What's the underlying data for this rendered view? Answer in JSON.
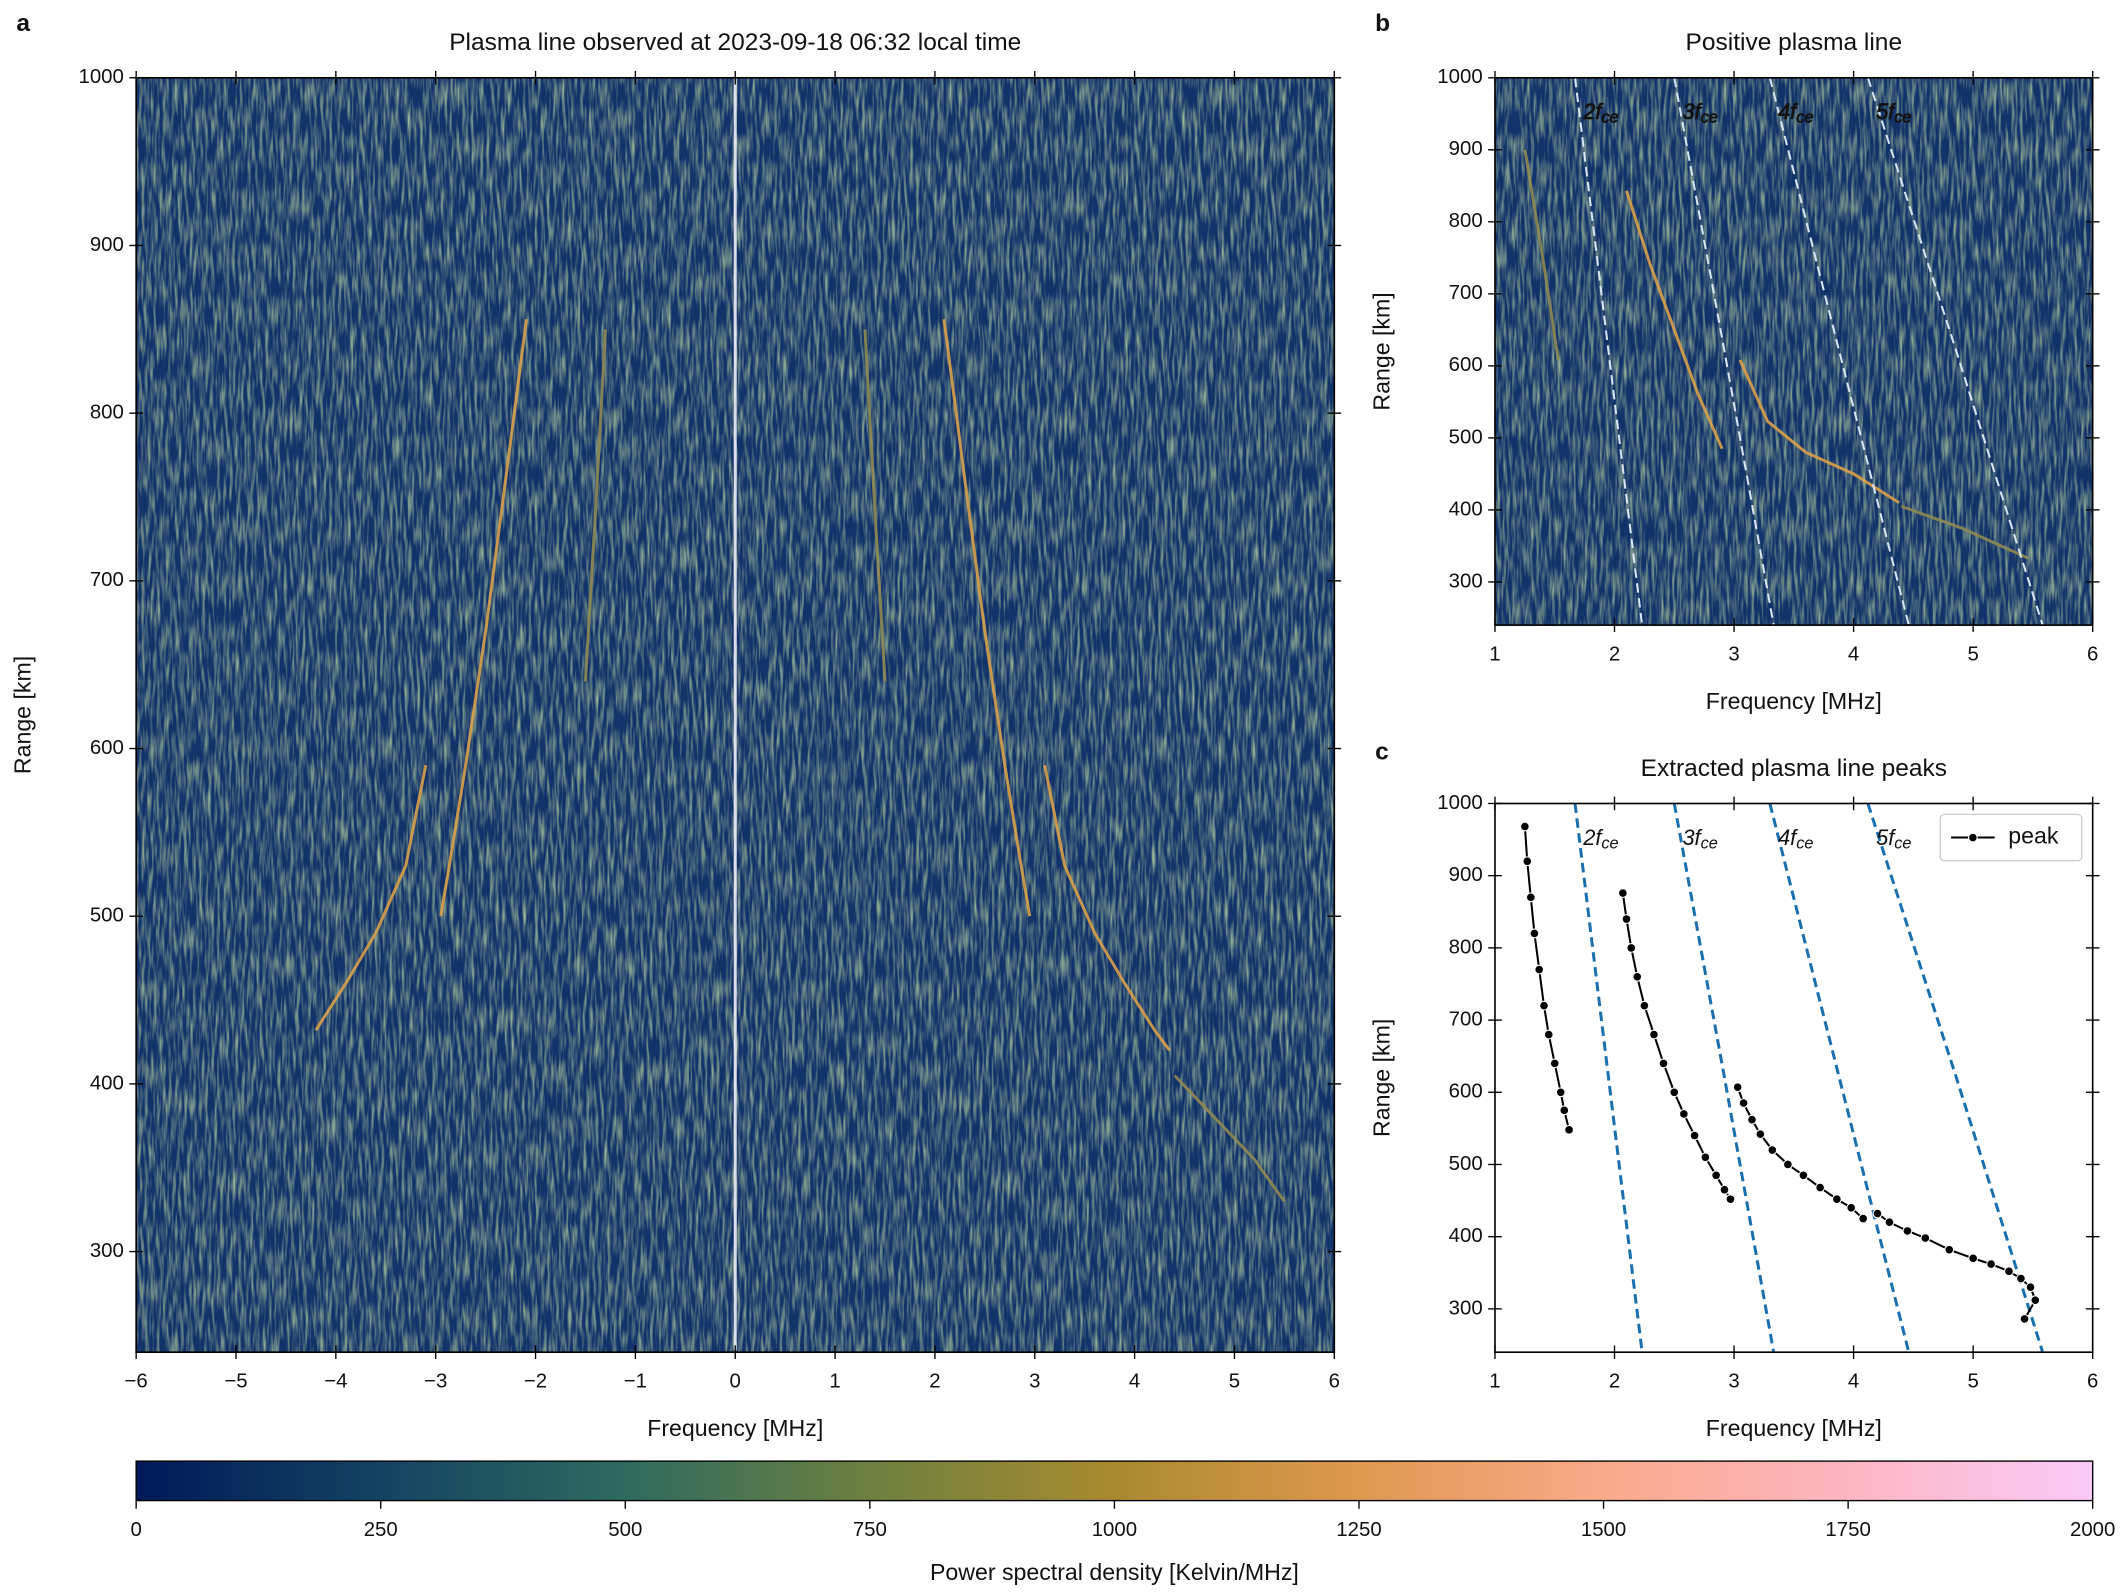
{
  "chart_data": [
    {
      "type": "heatmap",
      "panel": "a",
      "title": "Plasma line observed at 2023-09-18 06:32 local time",
      "xlabel": "Frequency [MHz]",
      "ylabel": "Range [km]",
      "xlim": [
        -6,
        6
      ],
      "ylim": [
        240,
        1000
      ],
      "xticks": [
        {
          "value": -6,
          "label": "−6"
        },
        {
          "value": -5,
          "label": "−5"
        },
        {
          "value": -4,
          "label": "−4"
        },
        {
          "value": -3,
          "label": "−3"
        },
        {
          "value": -2,
          "label": "−2"
        },
        {
          "value": -1,
          "label": "−1"
        },
        0,
        1,
        2,
        3,
        4,
        5,
        6
      ],
      "yticks": [
        300,
        400,
        500,
        600,
        700,
        800,
        900,
        1000
      ],
      "background": "#12326a",
      "traces": [
        {
          "color": "#f2eef8",
          "x": [
            0,
            0
          ],
          "values": [
            241,
            1000
          ]
        },
        {
          "color": "#d9a04a",
          "x": [
            2.09,
            2.3,
            2.5,
            2.7,
            2.85,
            2.95
          ],
          "values": [
            856,
            760,
            670,
            590,
            535,
            500
          ]
        },
        {
          "color": "#d9a04a",
          "x": [
            3.1,
            3.3,
            3.6,
            3.9,
            4.2,
            4.35
          ],
          "values": [
            590,
            530,
            490,
            460,
            432,
            420
          ]
        },
        {
          "color": "#8f8a52",
          "x": [
            4.4,
            4.8,
            5.2,
            5.5
          ],
          "values": [
            405,
            380,
            355,
            330
          ]
        },
        {
          "color": "#8f8a52",
          "x": [
            1.3,
            1.4,
            1.5
          ],
          "values": [
            850,
            740,
            640
          ]
        },
        {
          "color": "#d9a04a",
          "x": [
            -2.09,
            -2.3,
            -2.5,
            -2.7,
            -2.85,
            -2.95
          ],
          "values": [
            856,
            760,
            670,
            590,
            535,
            500
          ]
        },
        {
          "color": "#d9a04a",
          "x": [
            -3.1,
            -3.3,
            -3.6,
            -3.9,
            -4.2
          ],
          "values": [
            590,
            530,
            490,
            460,
            432
          ]
        },
        {
          "color": "#8f8a52",
          "x": [
            -1.3,
            -1.4,
            -1.5
          ],
          "values": [
            850,
            740,
            640
          ]
        }
      ]
    },
    {
      "type": "heatmap",
      "panel": "b",
      "title": "Positive plasma line",
      "xlabel": "Frequency [MHz]",
      "ylabel": "Range [km]",
      "xlim": [
        1,
        6
      ],
      "ylim": [
        240,
        1000
      ],
      "xticks": [
        1,
        2,
        3,
        4,
        5,
        6
      ],
      "yticks": [
        300,
        400,
        500,
        600,
        700,
        800,
        900,
        1000
      ],
      "background": "#12326a",
      "traces": [
        {
          "color": "#d9a04a",
          "x": [
            2.1,
            2.3,
            2.5,
            2.7,
            2.9
          ],
          "values": [
            843,
            740,
            650,
            560,
            485
          ]
        },
        {
          "color": "#d9a04a",
          "x": [
            3.05,
            3.28,
            3.6,
            4.0,
            4.38
          ],
          "values": [
            608,
            523,
            480,
            450,
            410
          ]
        },
        {
          "color": "#8f8a52",
          "x": [
            4.4,
            4.9,
            5.46
          ],
          "values": [
            405,
            375,
            333
          ]
        },
        {
          "color": "#8f8a52",
          "x": [
            1.25,
            1.4,
            1.53
          ],
          "values": [
            900,
            750,
            608
          ]
        }
      ],
      "harmonics_color": "#d8e6f2",
      "harmonics": [
        {
          "label": "2f",
          "subscript": "ce",
          "x": [
            1.67,
            1.95,
            2.23
          ],
          "values": [
            1000,
            620,
            241
          ]
        },
        {
          "label": "3f",
          "subscript": "ce",
          "x": [
            2.5,
            2.92,
            3.33
          ],
          "values": [
            1000,
            620,
            241
          ]
        },
        {
          "label": "4f",
          "subscript": "ce",
          "x": [
            3.3,
            3.88,
            4.46
          ],
          "values": [
            1000,
            620,
            241
          ]
        },
        {
          "label": "5f",
          "subscript": "ce",
          "x": [
            4.12,
            4.86,
            5.58
          ],
          "values": [
            1000,
            620,
            241
          ]
        }
      ]
    },
    {
      "type": "line",
      "panel": "c",
      "title": "Extracted plasma line peaks",
      "xlabel": "Frequency [MHz]",
      "ylabel": "Range [km]",
      "xlim": [
        1,
        6
      ],
      "ylim": [
        240,
        1000
      ],
      "xticks": [
        1,
        2,
        3,
        4,
        5,
        6
      ],
      "yticks": [
        300,
        400,
        500,
        600,
        700,
        800,
        900,
        1000
      ],
      "legend": "upper right",
      "harmonics_color": "#1a6faf",
      "harmonics": [
        {
          "label": "2f",
          "subscript": "ce",
          "x": [
            1.67,
            1.95,
            2.23
          ],
          "values": [
            1000,
            620,
            241
          ]
        },
        {
          "label": "3f",
          "subscript": "ce",
          "x": [
            2.5,
            2.92,
            3.33
          ],
          "values": [
            1000,
            620,
            241
          ]
        },
        {
          "label": "4f",
          "subscript": "ce",
          "x": [
            3.3,
            3.88,
            4.46
          ],
          "values": [
            1000,
            620,
            241
          ]
        },
        {
          "label": "5f",
          "subscript": "ce",
          "x": [
            4.12,
            4.86,
            5.58
          ],
          "values": [
            1000,
            620,
            241
          ]
        }
      ],
      "series": [
        {
          "name": "peak",
          "color": "#000000",
          "x": [
            1.25,
            1.27,
            1.3,
            1.33,
            1.37,
            1.41,
            1.45,
            1.5,
            1.55,
            1.58,
            1.62,
            null,
            2.07,
            2.1,
            2.14,
            2.19,
            2.25,
            2.33,
            2.41,
            2.5,
            2.58,
            2.67,
            2.76,
            2.85,
            2.92,
            2.97,
            null,
            3.03,
            3.08,
            3.15,
            3.22,
            3.32,
            3.45,
            3.58,
            3.72,
            3.86,
            3.98,
            4.08,
            null,
            4.2,
            4.3,
            4.45,
            4.6,
            4.8,
            5.0,
            5.15,
            5.3,
            5.4,
            5.48,
            5.52,
            5.43
          ],
          "values": [
            968,
            920,
            870,
            820,
            770,
            720,
            680,
            640,
            600,
            575,
            548,
            null,
            876,
            840,
            800,
            760,
            720,
            680,
            640,
            600,
            570,
            540,
            510,
            485,
            465,
            452,
            null,
            607,
            585,
            562,
            542,
            520,
            500,
            485,
            468,
            452,
            440,
            425,
            null,
            432,
            420,
            408,
            398,
            382,
            370,
            362,
            352,
            342,
            330,
            312,
            286
          ]
        }
      ]
    },
    {
      "type": "colorbar",
      "xlabel": "Power spectral density [Kelvin/MHz]",
      "xlim": [
        0,
        2000
      ],
      "xticks": [
        0,
        250,
        500,
        750,
        1000,
        1250,
        1500,
        1750,
        2000
      ],
      "colormap": [
        "#011959",
        "#134362",
        "#2e6a5f",
        "#6d8040",
        "#a98a2e",
        "#e0984f",
        "#fba88a",
        "#fcb6c2",
        "#fac9f8"
      ]
    }
  ]
}
